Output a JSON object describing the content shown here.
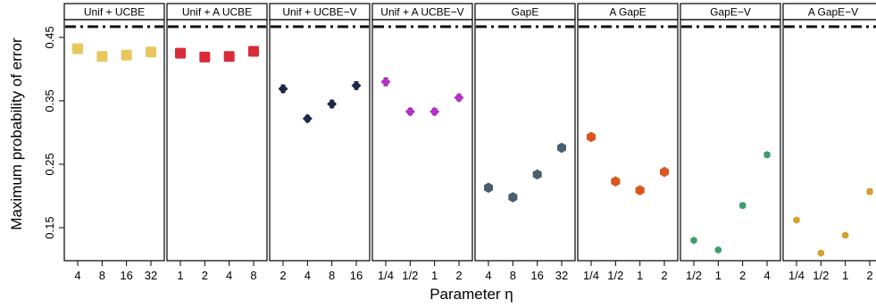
{
  "chart_data": {
    "type": "scatter",
    "ylabel": "Maximum probability of error",
    "xlabel": "Parameter η",
    "ylim": [
      0.098,
      0.478
    ],
    "yticks": [
      "0.15",
      "0.25",
      "0.35",
      "0.45"
    ],
    "reference_line": 0.467,
    "panels": [
      {
        "title": "Unif + UCBE",
        "color": "#E8C75C",
        "marker": "square",
        "categories": [
          "4",
          "8",
          "16",
          "32"
        ],
        "values": [
          0.432,
          0.42,
          0.422,
          0.427
        ],
        "errors": [
          0.005,
          0.005,
          0.005,
          0.005
        ]
      },
      {
        "title": "Unif + A UCBE",
        "color": "#D92B3A",
        "marker": "square",
        "categories": [
          "1",
          "2",
          "4",
          "8"
        ],
        "values": [
          0.425,
          0.419,
          0.42,
          0.428
        ],
        "errors": [
          0.005,
          0.005,
          0.005,
          0.005
        ]
      },
      {
        "title": "Unif + UCBE−V",
        "color": "#1B2A4A",
        "marker": "diamond",
        "categories": [
          "2",
          "4",
          "8",
          "16"
        ],
        "values": [
          0.369,
          0.322,
          0.345,
          0.374
        ],
        "errors": [
          0.006,
          0.005,
          0.006,
          0.006
        ]
      },
      {
        "title": "Unif + A UCBE−V",
        "color": "#B52FC8",
        "marker": "diamond",
        "categories": [
          "1/4",
          "1/2",
          "1",
          "2"
        ],
        "values": [
          0.38,
          0.333,
          0.333,
          0.355
        ],
        "errors": [
          0.006,
          0.005,
          0.005,
          0.005
        ]
      },
      {
        "title": "GapE",
        "color": "#4A5E70",
        "marker": "hexagon",
        "categories": [
          "4",
          "8",
          "16",
          "32"
        ],
        "values": [
          0.213,
          0.198,
          0.234,
          0.276
        ],
        "errors": [
          0.004,
          0.004,
          0.004,
          0.004
        ]
      },
      {
        "title": "A GapE",
        "color": "#D9571E",
        "marker": "hexagon",
        "categories": [
          "1/4",
          "1/2",
          "1",
          "2"
        ],
        "values": [
          0.293,
          0.223,
          0.209,
          0.238
        ],
        "errors": [
          0.004,
          0.004,
          0.004,
          0.004
        ]
      },
      {
        "title": "GapE−V",
        "color": "#3E9E6A",
        "marker": "hexagon-small",
        "categories": [
          "1/2",
          "1",
          "2",
          "4"
        ],
        "values": [
          0.13,
          0.115,
          0.185,
          0.265
        ],
        "errors": [
          0.003,
          0.003,
          0.004,
          0.004
        ]
      },
      {
        "title": "A GapE−V",
        "color": "#D4A12F",
        "marker": "hexagon-small",
        "categories": [
          "1/4",
          "1/2",
          "1",
          "2"
        ],
        "values": [
          0.162,
          0.11,
          0.138,
          0.207
        ],
        "errors": [
          0.003,
          0.003,
          0.003,
          0.004
        ]
      }
    ]
  }
}
